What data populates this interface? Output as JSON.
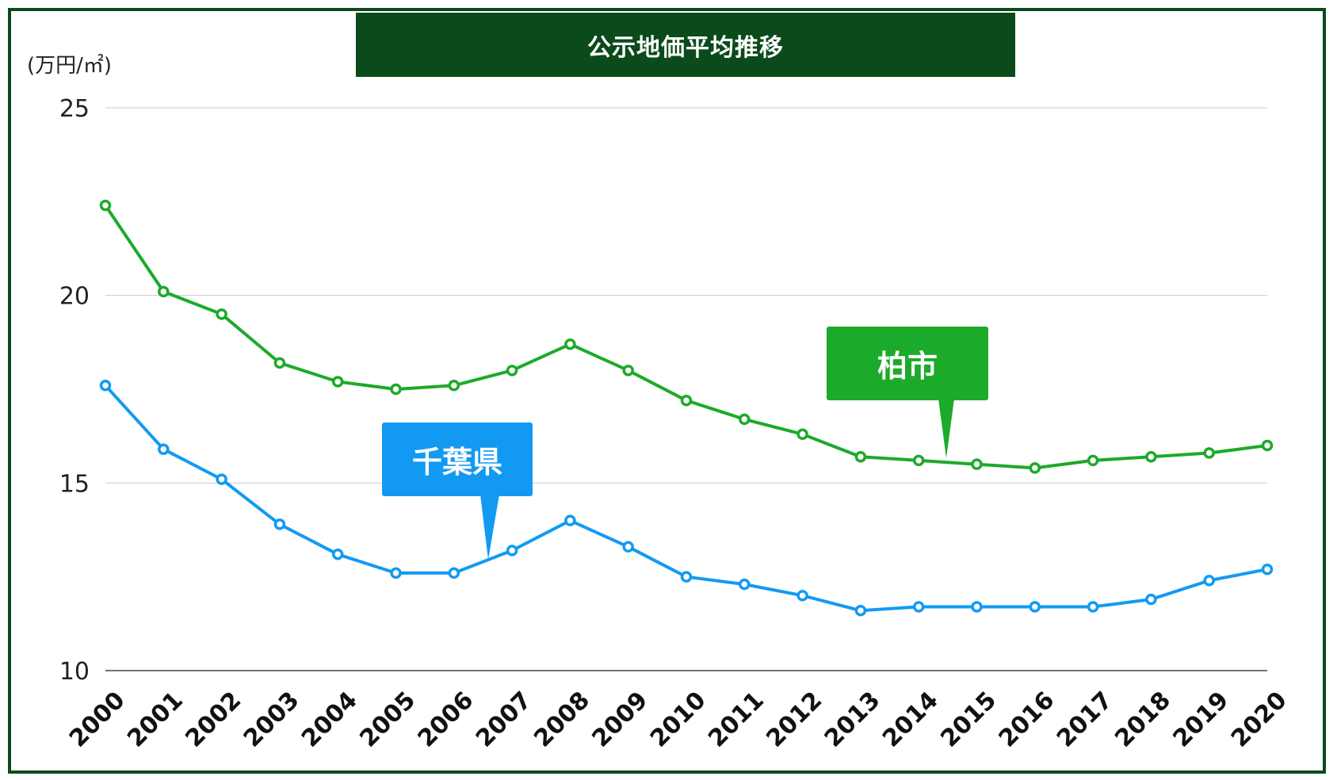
{
  "title": "公示地価平均推移",
  "unit_label": "(万円/㎡)",
  "colors": {
    "kashiwa": "#1caa2a",
    "chiba": "#129af2",
    "title_bg": "#0b4a1b",
    "grid": "#cccccc"
  },
  "callouts": {
    "kashiwa": "柏市",
    "chiba": "千葉県"
  },
  "chart_data": {
    "type": "line",
    "title": "公示地価平均推移",
    "ylabel": "(万円/㎡)",
    "xlabel": "",
    "x": [
      "2000",
      "2001",
      "2002",
      "2003",
      "2004",
      "2005",
      "2006",
      "2007",
      "2008",
      "2009",
      "2010",
      "2011",
      "2012",
      "2013",
      "2014",
      "2015",
      "2016",
      "2017",
      "2018",
      "2019",
      "2020"
    ],
    "ylim": [
      10,
      25
    ],
    "yticks": [
      10,
      15,
      20,
      25
    ],
    "grid": true,
    "series": [
      {
        "name": "柏市",
        "color": "#1caa2a",
        "values": [
          22.4,
          20.1,
          19.5,
          18.2,
          17.7,
          17.5,
          17.6,
          18.0,
          18.7,
          18.0,
          17.2,
          16.7,
          16.3,
          15.7,
          15.6,
          15.5,
          15.4,
          15.6,
          15.7,
          15.8,
          16.0
        ]
      },
      {
        "name": "千葉県",
        "color": "#129af2",
        "values": [
          17.6,
          15.9,
          15.1,
          13.9,
          13.1,
          12.6,
          12.6,
          13.2,
          14.0,
          13.3,
          12.5,
          12.3,
          12.0,
          11.6,
          11.7,
          11.7,
          11.7,
          11.7,
          11.9,
          12.4,
          12.7
        ]
      }
    ]
  }
}
